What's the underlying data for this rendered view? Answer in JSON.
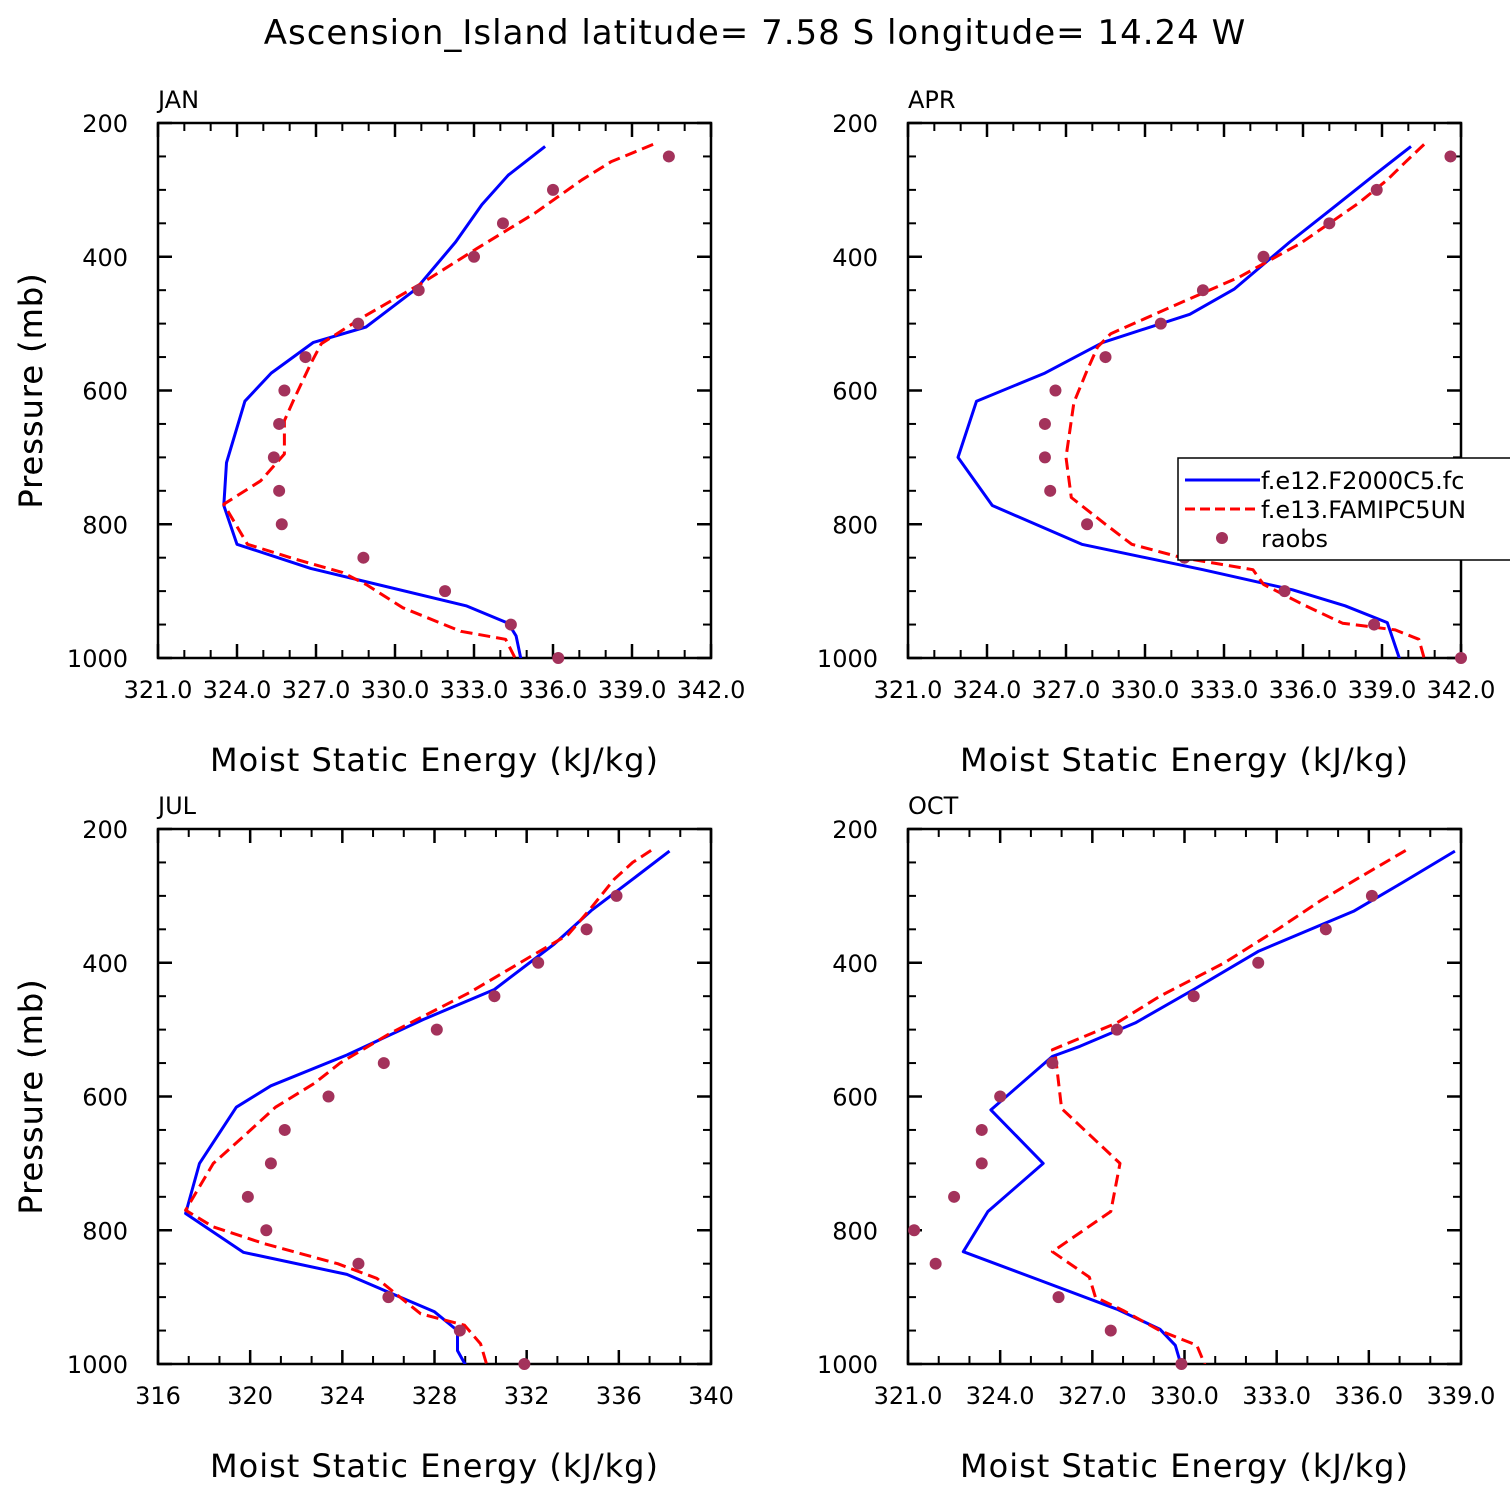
{
  "title": "Ascension_Island  latitude= 7.58 S longitude= 14.24 W",
  "legend": {
    "entries": [
      {
        "label": "f.e12.F2000C5.fc",
        "color": "#0000ff",
        "style": "solid"
      },
      {
        "label": "f.e13.FAMIPC5UN",
        "color": "#ff0000",
        "style": "dashed"
      },
      {
        "label": "raobs",
        "color": "#a3325b",
        "style": "dot"
      }
    ]
  },
  "chart_data": [
    {
      "type": "line",
      "panel": "JAN",
      "xlabel": "Moist Static Energy (kJ/kg)",
      "ylabel": "Pressure (mb)",
      "xlim": [
        321.0,
        342.0
      ],
      "ylim": [
        1000,
        200
      ],
      "y_inverted": true,
      "xticks": [
        "321.0",
        "324.0",
        "327.0",
        "330.0",
        "333.0",
        "336.0",
        "339.0",
        "342.0"
      ],
      "yticks": [
        "200",
        "400",
        "600",
        "800",
        "1000"
      ],
      "series": [
        {
          "name": "f.e12.F2000C5.fc",
          "color": "#0000ff",
          "style": "solid",
          "points": [
            [
              335.7,
              235
            ],
            [
              334.3,
              278
            ],
            [
              333.3,
              322
            ],
            [
              332.3,
              378
            ],
            [
              330.8,
              448
            ],
            [
              328.9,
              505
            ],
            [
              326.9,
              528
            ],
            [
              325.3,
              574
            ],
            [
              324.3,
              616
            ],
            [
              323.6,
              708
            ],
            [
              323.5,
              772
            ],
            [
              324.0,
              830
            ],
            [
              326.8,
              866
            ],
            [
              332.7,
              922
            ],
            [
              334.3,
              948
            ],
            [
              334.6,
              967
            ],
            [
              334.8,
              1005
            ]
          ]
        },
        {
          "name": "f.e13.FAMIPC5UN",
          "color": "#ff0000",
          "style": "dashed",
          "points": [
            [
              339.8,
              232
            ],
            [
              338.2,
              258
            ],
            [
              337.1,
              285
            ],
            [
              335.3,
              335
            ],
            [
              333.1,
              388
            ],
            [
              331.0,
              440
            ],
            [
              328.8,
              490
            ],
            [
              327.2,
              530
            ],
            [
              326.8,
              560
            ],
            [
              326.2,
              610
            ],
            [
              325.8,
              645
            ],
            [
              325.8,
              695
            ],
            [
              324.9,
              735
            ],
            [
              323.5,
              770
            ],
            [
              324.4,
              830
            ],
            [
              326.2,
              852
            ],
            [
              328.0,
              872
            ],
            [
              328.9,
              890
            ],
            [
              330.3,
              925
            ],
            [
              332.5,
              960
            ],
            [
              334.2,
              972
            ],
            [
              334.6,
              1003
            ]
          ]
        },
        {
          "name": "raobs",
          "color": "#a3325b",
          "style": "dot",
          "points": [
            [
              340.4,
              250
            ],
            [
              336.0,
              300
            ],
            [
              334.1,
              350
            ],
            [
              333.0,
              400
            ],
            [
              330.9,
              450
            ],
            [
              328.6,
              500
            ],
            [
              326.6,
              550
            ],
            [
              325.8,
              600
            ],
            [
              325.6,
              650
            ],
            [
              325.4,
              700
            ],
            [
              325.6,
              750
            ],
            [
              325.7,
              800
            ],
            [
              328.8,
              850
            ],
            [
              331.9,
              900
            ],
            [
              334.4,
              950
            ],
            [
              336.2,
              1000
            ]
          ]
        }
      ]
    },
    {
      "type": "line",
      "panel": "APR",
      "xlabel": "Moist Static Energy (kJ/kg)",
      "ylabel": "Pressure (mb)",
      "xlim": [
        321.0,
        342.0
      ],
      "ylim": [
        1000,
        200
      ],
      "y_inverted": true,
      "xticks": [
        "321.0",
        "324.0",
        "327.0",
        "330.0",
        "333.0",
        "336.0",
        "339.0",
        "342.0"
      ],
      "yticks": [
        "200",
        "400",
        "600",
        "800",
        "1000"
      ],
      "series": [
        {
          "name": "f.e12.F2000C5.fc",
          "color": "#0000ff",
          "style": "solid",
          "points": [
            [
              340.1,
              235
            ],
            [
              338.7,
              278
            ],
            [
              337.3,
              322
            ],
            [
              335.5,
              378
            ],
            [
              333.4,
              448
            ],
            [
              331.7,
              486
            ],
            [
              328.4,
              528
            ],
            [
              326.2,
              574
            ],
            [
              323.6,
              616
            ],
            [
              322.9,
              700
            ],
            [
              324.2,
              772
            ],
            [
              327.6,
              830
            ],
            [
              332.2,
              868
            ],
            [
              335.6,
              898
            ],
            [
              337.6,
              922
            ],
            [
              339.2,
              947
            ],
            [
              339.4,
              970
            ],
            [
              339.7,
              1005
            ]
          ]
        },
        {
          "name": "f.e13.FAMIPC5UN",
          "color": "#ff0000",
          "style": "dashed",
          "points": [
            [
              340.6,
              232
            ],
            [
              339.9,
              258
            ],
            [
              339.2,
              285
            ],
            [
              338.1,
              320
            ],
            [
              335.9,
              380
            ],
            [
              333.6,
              430
            ],
            [
              331.0,
              475
            ],
            [
              328.7,
              515
            ],
            [
              328.2,
              535
            ],
            [
              327.8,
              570
            ],
            [
              327.3,
              618
            ],
            [
              327.0,
              700
            ],
            [
              327.2,
              760
            ],
            [
              328.5,
              800
            ],
            [
              329.5,
              830
            ],
            [
              331.4,
              850
            ],
            [
              334.1,
              868
            ],
            [
              334.5,
              890
            ],
            [
              336.0,
              920
            ],
            [
              337.5,
              948
            ],
            [
              339.5,
              958
            ],
            [
              340.4,
              972
            ],
            [
              340.6,
              1000
            ]
          ]
        },
        {
          "name": "raobs",
          "color": "#a3325b",
          "style": "dot",
          "points": [
            [
              341.6,
              250
            ],
            [
              338.8,
              300
            ],
            [
              337.0,
              350
            ],
            [
              334.5,
              400
            ],
            [
              332.2,
              450
            ],
            [
              330.6,
              500
            ],
            [
              328.5,
              550
            ],
            [
              326.6,
              600
            ],
            [
              326.2,
              650
            ],
            [
              326.2,
              700
            ],
            [
              326.4,
              750
            ],
            [
              327.8,
              800
            ],
            [
              331.5,
              850
            ],
            [
              335.3,
              900
            ],
            [
              338.7,
              950
            ],
            [
              342.0,
              1000
            ]
          ]
        }
      ]
    },
    {
      "type": "line",
      "panel": "JUL",
      "xlabel": "Moist Static Energy (kJ/kg)",
      "ylabel": "Pressure (mb)",
      "xlim": [
        316,
        340
      ],
      "ylim": [
        1000,
        200
      ],
      "y_inverted": true,
      "xticks": [
        "316",
        "320",
        "324",
        "328",
        "332",
        "336",
        "340"
      ],
      "yticks": [
        "200",
        "400",
        "600",
        "800",
        "1000"
      ],
      "series": [
        {
          "name": "f.e12.F2000C5.fc",
          "color": "#0000ff",
          "style": "solid",
          "points": [
            [
              338.2,
              233
            ],
            [
              336.6,
              275
            ],
            [
              334.8,
              322
            ],
            [
              333.2,
              372
            ],
            [
              330.6,
              440
            ],
            [
              327.5,
              485
            ],
            [
              324.2,
              538
            ],
            [
              320.9,
              584
            ],
            [
              319.4,
              616
            ],
            [
              317.8,
              700
            ],
            [
              317.2,
              775
            ],
            [
              319.7,
              833
            ],
            [
              324.2,
              866
            ],
            [
              328.0,
              922
            ],
            [
              329.0,
              950
            ],
            [
              329.0,
              980
            ],
            [
              329.4,
              1005
            ]
          ]
        },
        {
          "name": "f.e13.FAMIPC5UN",
          "color": "#ff0000",
          "style": "dashed",
          "points": [
            [
              337.4,
              232
            ],
            [
              336.6,
              250
            ],
            [
              335.8,
              275
            ],
            [
              334.7,
              322
            ],
            [
              333.8,
              358
            ],
            [
              332.2,
              390
            ],
            [
              329.5,
              445
            ],
            [
              326.1,
              505
            ],
            [
              323.9,
              550
            ],
            [
              322.8,
              580
            ],
            [
              321.1,
              616
            ],
            [
              319.7,
              660
            ],
            [
              318.4,
              700
            ],
            [
              317.2,
              770
            ],
            [
              318.4,
              795
            ],
            [
              320.6,
              820
            ],
            [
              323.8,
              850
            ],
            [
              325.5,
              872
            ],
            [
              326.5,
              900
            ],
            [
              327.4,
              925
            ],
            [
              329.3,
              942
            ],
            [
              330.0,
              970
            ],
            [
              330.3,
              1005
            ]
          ]
        },
        {
          "name": "raobs",
          "color": "#a3325b",
          "style": "dot",
          "points": [
            [
              335.9,
              300
            ],
            [
              334.6,
              350
            ],
            [
              332.5,
              400
            ],
            [
              330.6,
              450
            ],
            [
              328.1,
              500
            ],
            [
              325.8,
              550
            ],
            [
              323.4,
              600
            ],
            [
              321.5,
              650
            ],
            [
              320.9,
              700
            ],
            [
              319.9,
              750
            ],
            [
              320.7,
              800
            ],
            [
              324.7,
              850
            ],
            [
              326.0,
              900
            ],
            [
              329.1,
              950
            ],
            [
              331.9,
              1000
            ]
          ]
        }
      ]
    },
    {
      "type": "line",
      "panel": "OCT",
      "xlabel": "Moist Static Energy (kJ/kg)",
      "ylabel": "Pressure (mb)",
      "xlim": [
        321.0,
        339.0
      ],
      "ylim": [
        1000,
        200
      ],
      "y_inverted": true,
      "xticks": [
        "321.0",
        "324.0",
        "327.0",
        "330.0",
        "333.0",
        "336.0",
        "339.0"
      ],
      "yticks": [
        "200",
        "400",
        "600",
        "800",
        "1000"
      ],
      "series": [
        {
          "name": "f.e12.F2000C5.fc",
          "color": "#0000ff",
          "style": "solid",
          "points": [
            [
              338.8,
              233
            ],
            [
              337.1,
              280
            ],
            [
              335.5,
              323
            ],
            [
              332.4,
              383
            ],
            [
              330.3,
              440
            ],
            [
              328.4,
              490
            ],
            [
              326.6,
              525
            ],
            [
              325.7,
              540
            ],
            [
              323.7,
              620
            ],
            [
              325.4,
              700
            ],
            [
              323.6,
              772
            ],
            [
              322.8,
              832
            ],
            [
              325.3,
              875
            ],
            [
              327.8,
              918
            ],
            [
              329.2,
              948
            ],
            [
              329.7,
              972
            ],
            [
              329.9,
              1003
            ]
          ]
        },
        {
          "name": "f.e13.FAMIPC5UN",
          "color": "#ff0000",
          "style": "dashed",
          "points": [
            [
              337.2,
              232
            ],
            [
              335.6,
              275
            ],
            [
              334.4,
              308
            ],
            [
              333.1,
              348
            ],
            [
              331.3,
              400
            ],
            [
              329.2,
              450
            ],
            [
              327.8,
              490
            ],
            [
              325.7,
              530
            ],
            [
              325.8,
              540
            ],
            [
              326.0,
              618
            ],
            [
              327.9,
              700
            ],
            [
              327.6,
              772
            ],
            [
              325.7,
              832
            ],
            [
              326.9,
              870
            ],
            [
              327.1,
              900
            ],
            [
              328.0,
              920
            ],
            [
              329.2,
              950
            ],
            [
              330.4,
              972
            ],
            [
              330.7,
              1005
            ]
          ]
        },
        {
          "name": "raobs",
          "color": "#a3325b",
          "style": "dot",
          "points": [
            [
              336.1,
              300
            ],
            [
              334.6,
              350
            ],
            [
              332.4,
              400
            ],
            [
              330.3,
              450
            ],
            [
              327.8,
              500
            ],
            [
              325.7,
              550
            ],
            [
              324.0,
              600
            ],
            [
              323.4,
              650
            ],
            [
              323.4,
              700
            ],
            [
              322.5,
              750
            ],
            [
              321.2,
              800
            ],
            [
              321.9,
              850
            ],
            [
              325.9,
              900
            ],
            [
              327.6,
              950
            ],
            [
              329.9,
              1000
            ]
          ]
        }
      ]
    }
  ]
}
